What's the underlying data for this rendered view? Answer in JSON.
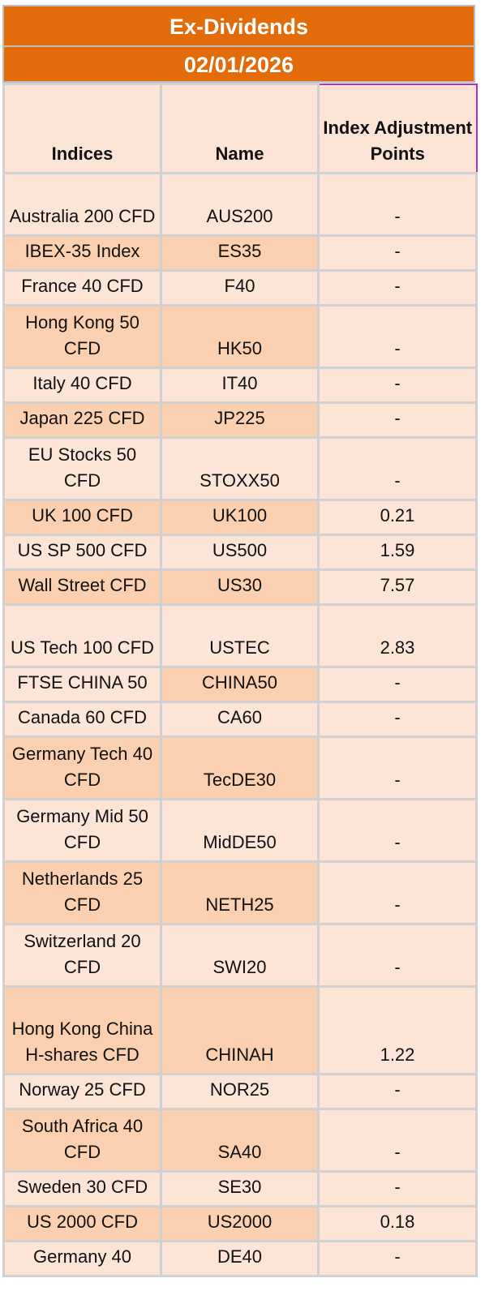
{
  "title": "Ex-Dividends",
  "date": "02/01/2026",
  "headers": {
    "indices": "Indices",
    "name": "Name",
    "adjustment": "Index Adjustment Points"
  },
  "colors": {
    "banner": "#e36c0a",
    "row_light": "#fce5d6",
    "row_dark": "#fbd0b0",
    "header_highlight_border": "#b030c0"
  },
  "rows": [
    {
      "index": "Australia 200 CFD",
      "name": "AUS200",
      "points": "-"
    },
    {
      "index": "IBEX-35 Index",
      "name": "ES35",
      "points": "-"
    },
    {
      "index": "France 40 CFD",
      "name": "F40",
      "points": "-"
    },
    {
      "index": "Hong Kong 50 CFD",
      "name": "HK50",
      "points": "-"
    },
    {
      "index": "Italy 40 CFD",
      "name": "IT40",
      "points": "-"
    },
    {
      "index": "Japan 225 CFD",
      "name": "JP225",
      "points": "-"
    },
    {
      "index": "EU Stocks 50 CFD",
      "name": "STOXX50",
      "points": "-"
    },
    {
      "index": "UK 100 CFD",
      "name": "UK100",
      "points": "0.21"
    },
    {
      "index": "US SP 500 CFD",
      "name": "US500",
      "points": "1.59"
    },
    {
      "index": "Wall Street CFD",
      "name": "US30",
      "points": "7.57"
    },
    {
      "index": "US Tech 100 CFD",
      "name": "USTEC",
      "points": "2.83"
    },
    {
      "index": "FTSE CHINA 50",
      "name": "CHINA50",
      "points": "-"
    },
    {
      "index": "Canada 60 CFD",
      "name": "CA60",
      "points": "-"
    },
    {
      "index": "Germany Tech 40 CFD",
      "name": "TecDE30",
      "points": "-"
    },
    {
      "index": "Germany Mid 50 CFD",
      "name": "MidDE50",
      "points": "-"
    },
    {
      "index": "Netherlands 25 CFD",
      "name": "NETH25",
      "points": "-"
    },
    {
      "index": "Switzerland 20 CFD",
      "name": "SWI20",
      "points": "-"
    },
    {
      "index": "Hong Kong China H-shares CFD",
      "name": "CHINAH",
      "points": "1.22"
    },
    {
      "index": "Norway 25 CFD",
      "name": "NOR25",
      "points": "-"
    },
    {
      "index": "South Africa 40 CFD",
      "name": "SA40",
      "points": "-"
    },
    {
      "index": "Sweden 30 CFD",
      "name": "SE30",
      "points": "-"
    },
    {
      "index": "US 2000 CFD",
      "name": "US2000",
      "points": "0.18"
    },
    {
      "index": "Germany 40",
      "name": "DE40",
      "points": "-"
    }
  ]
}
